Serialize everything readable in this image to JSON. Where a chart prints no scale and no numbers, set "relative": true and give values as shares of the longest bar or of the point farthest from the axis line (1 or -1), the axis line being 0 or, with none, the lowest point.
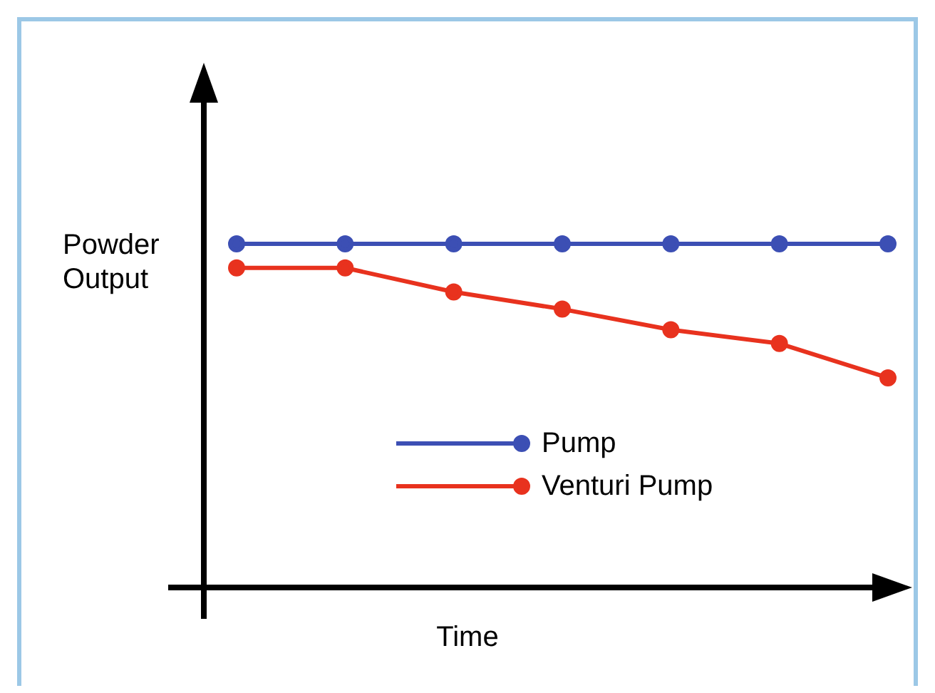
{
  "chart_data": {
    "type": "line",
    "relative": true,
    "xlabel": "Time",
    "ylabel": "Powder Output",
    "categories": [
      null,
      null,
      null,
      null,
      null,
      null,
      null
    ],
    "marker": "circle",
    "legend": "bottom",
    "series": [
      {
        "name": "Pump",
        "color": "#3c4fb4",
        "values": [
          1,
          1,
          1,
          1,
          1,
          1,
          1
        ]
      },
      {
        "name": "Venturi Pump",
        "color": "#e8321e",
        "values": [
          0.93,
          0.93,
          0.86,
          0.81,
          0.75,
          0.71,
          0.61
        ]
      }
    ]
  }
}
